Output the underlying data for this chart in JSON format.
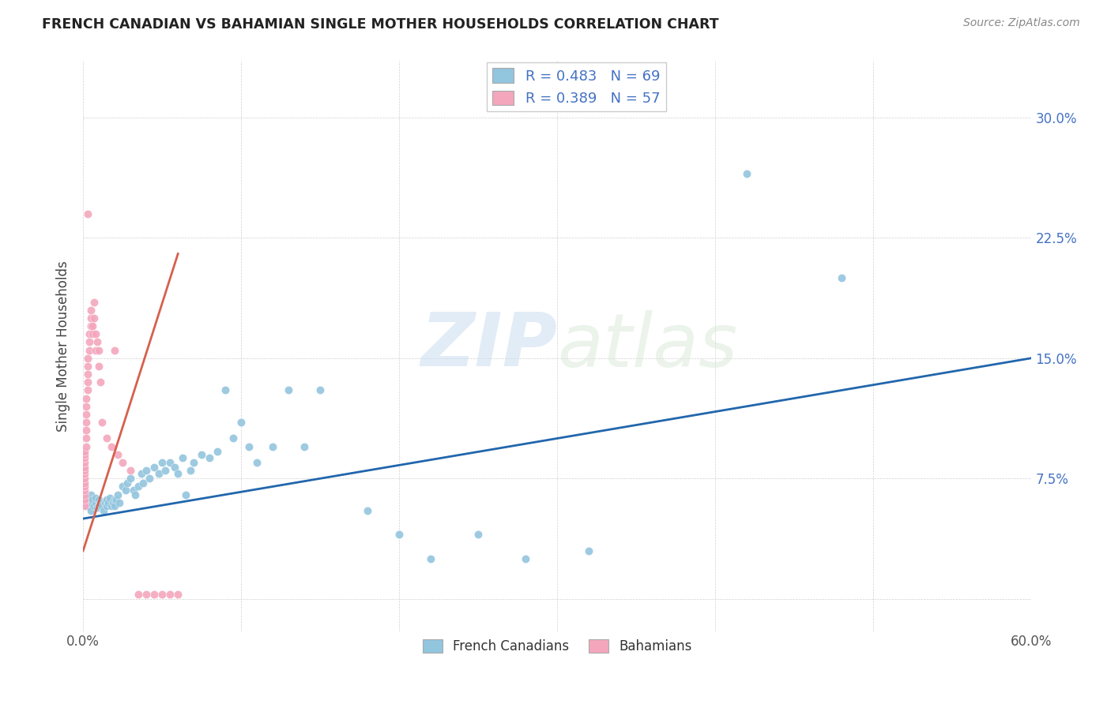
{
  "title": "FRENCH CANADIAN VS BAHAMIAN SINGLE MOTHER HOUSEHOLDS CORRELATION CHART",
  "source": "Source: ZipAtlas.com",
  "ylabel": "Single Mother Households",
  "xlim": [
    0.0,
    0.6
  ],
  "ylim": [
    -0.02,
    0.335
  ],
  "ytick_positions": [
    0.0,
    0.075,
    0.15,
    0.225,
    0.3
  ],
  "ytick_labels_right": [
    "",
    "7.5%",
    "15.0%",
    "22.5%",
    "30.0%"
  ],
  "xtick_positions": [
    0.0,
    0.1,
    0.2,
    0.3,
    0.4,
    0.5,
    0.6
  ],
  "xtick_labels": [
    "0.0%",
    "",
    "",
    "",
    "",
    "",
    "60.0%"
  ],
  "watermark_zip": "ZIP",
  "watermark_atlas": "atlas",
  "blue_R": "0.483",
  "blue_N": "69",
  "pink_R": "0.389",
  "pink_N": "57",
  "blue_color": "#92c5de",
  "pink_color": "#f4a6bd",
  "blue_line_color": "#2166ac",
  "pink_line_color": "#d6604d",
  "legend_label_blue": "French Canadians",
  "legend_label_pink": "Bahamians",
  "blue_scatter_x": [
    0.002,
    0.003,
    0.004,
    0.005,
    0.005,
    0.006,
    0.007,
    0.008,
    0.008,
    0.009,
    0.01,
    0.01,
    0.011,
    0.012,
    0.013,
    0.014,
    0.015,
    0.015,
    0.016,
    0.017,
    0.018,
    0.019,
    0.02,
    0.02,
    0.021,
    0.022,
    0.023,
    0.025,
    0.027,
    0.028,
    0.03,
    0.032,
    0.033,
    0.035,
    0.037,
    0.038,
    0.04,
    0.042,
    0.045,
    0.048,
    0.05,
    0.052,
    0.055,
    0.058,
    0.06,
    0.063,
    0.065,
    0.068,
    0.07,
    0.075,
    0.08,
    0.085,
    0.09,
    0.095,
    0.1,
    0.105,
    0.11,
    0.12,
    0.13,
    0.14,
    0.15,
    0.18,
    0.2,
    0.22,
    0.25,
    0.28,
    0.32,
    0.42,
    0.48
  ],
  "blue_scatter_y": [
    0.063,
    0.058,
    0.06,
    0.065,
    0.055,
    0.062,
    0.058,
    0.06,
    0.063,
    0.057,
    0.058,
    0.062,
    0.06,
    0.058,
    0.055,
    0.06,
    0.058,
    0.062,
    0.06,
    0.063,
    0.058,
    0.06,
    0.062,
    0.058,
    0.062,
    0.065,
    0.06,
    0.07,
    0.068,
    0.072,
    0.075,
    0.068,
    0.065,
    0.07,
    0.078,
    0.072,
    0.08,
    0.075,
    0.082,
    0.078,
    0.085,
    0.08,
    0.085,
    0.082,
    0.078,
    0.088,
    0.065,
    0.08,
    0.085,
    0.09,
    0.088,
    0.092,
    0.13,
    0.1,
    0.11,
    0.095,
    0.085,
    0.095,
    0.13,
    0.095,
    0.13,
    0.055,
    0.04,
    0.025,
    0.04,
    0.025,
    0.03,
    0.265,
    0.2
  ],
  "pink_scatter_x": [
    0.001,
    0.001,
    0.001,
    0.001,
    0.001,
    0.001,
    0.001,
    0.001,
    0.001,
    0.001,
    0.001,
    0.001,
    0.001,
    0.001,
    0.001,
    0.002,
    0.002,
    0.002,
    0.002,
    0.002,
    0.002,
    0.002,
    0.003,
    0.003,
    0.003,
    0.003,
    0.003,
    0.004,
    0.004,
    0.004,
    0.005,
    0.005,
    0.005,
    0.006,
    0.006,
    0.007,
    0.007,
    0.008,
    0.008,
    0.009,
    0.01,
    0.01,
    0.011,
    0.012,
    0.015,
    0.018,
    0.02,
    0.022,
    0.025,
    0.03,
    0.035,
    0.04,
    0.045,
    0.05,
    0.055,
    0.06,
    0.003
  ],
  "pink_scatter_y": [
    0.06,
    0.058,
    0.062,
    0.065,
    0.068,
    0.07,
    0.072,
    0.075,
    0.078,
    0.08,
    0.082,
    0.085,
    0.088,
    0.09,
    0.092,
    0.095,
    0.1,
    0.105,
    0.11,
    0.115,
    0.12,
    0.125,
    0.13,
    0.135,
    0.14,
    0.145,
    0.15,
    0.155,
    0.16,
    0.165,
    0.17,
    0.175,
    0.18,
    0.165,
    0.17,
    0.175,
    0.185,
    0.165,
    0.155,
    0.16,
    0.155,
    0.145,
    0.135,
    0.11,
    0.1,
    0.095,
    0.155,
    0.09,
    0.085,
    0.08,
    0.003,
    0.003,
    0.003,
    0.003,
    0.003,
    0.003,
    0.24
  ],
  "blue_line_x": [
    0.0,
    0.6
  ],
  "blue_line_y": [
    0.05,
    0.15
  ],
  "pink_line_x": [
    0.0,
    0.06
  ],
  "pink_line_y": [
    0.03,
    0.215
  ]
}
